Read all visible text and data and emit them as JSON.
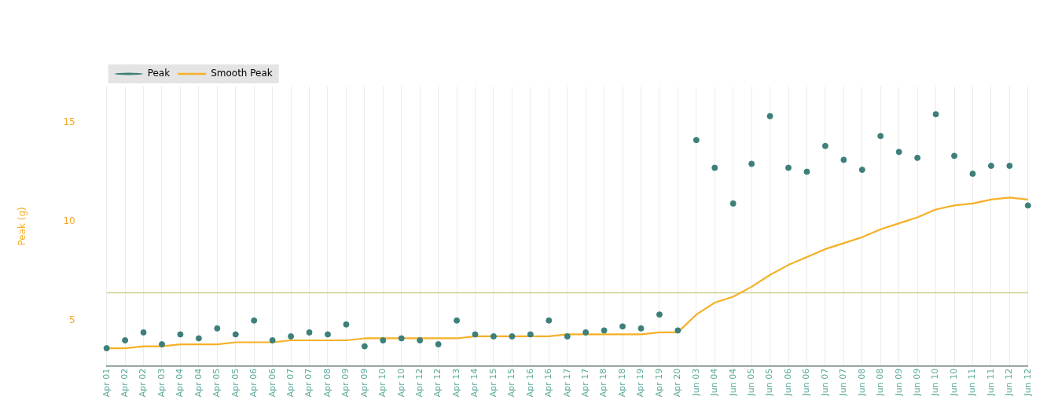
{
  "chart_data": {
    "type": "line",
    "ylabel": "Peak (g)",
    "categories": [
      "Apr 01",
      "Apr 02",
      "Apr 02",
      "Apr 03",
      "Apr 04",
      "Apr 04",
      "Apr 05",
      "Apr 05",
      "Apr 06",
      "Apr 06",
      "Apr 07",
      "Apr 07",
      "Apr 08",
      "Apr 09",
      "Apr 09",
      "Apr 10",
      "Apr 10",
      "Apr 12",
      "Apr 12",
      "Apr 13",
      "Apr 14",
      "Apr 15",
      "Apr 15",
      "Apr 16",
      "Apr 16",
      "Apr 17",
      "Apr 17",
      "Apr 18",
      "Apr 18",
      "Apr 19",
      "Apr 19",
      "Apr 20",
      "Jun 03",
      "Jun 04",
      "Jun 04",
      "Jun 05",
      "Jun 05",
      "Jun 06",
      "Jun 06",
      "Jun 07",
      "Jun 07",
      "Jun 08",
      "Jun 08",
      "Jun 09",
      "Jun 09",
      "Jun 10",
      "Jun 10",
      "Jun 11",
      "Jun 11",
      "Jun 12",
      "Jun 12"
    ],
    "series": [
      {
        "name": "Peak",
        "type": "scatter",
        "marker": "circle",
        "color": "#3d8079",
        "values": [
          3.6,
          4.0,
          4.4,
          3.8,
          4.3,
          4.1,
          4.6,
          4.3,
          5.0,
          4.0,
          4.2,
          4.4,
          4.3,
          4.8,
          3.7,
          4.0,
          4.1,
          4.0,
          3.8,
          5.0,
          4.3,
          4.2,
          4.2,
          4.3,
          5.0,
          4.2,
          4.4,
          4.5,
          4.7,
          4.6,
          5.3,
          4.5,
          14.1,
          12.7,
          10.9,
          12.9,
          15.3,
          12.7,
          12.5,
          13.8,
          13.1,
          12.6,
          14.3,
          13.5,
          13.2,
          15.4,
          13.3,
          12.4,
          12.8,
          12.8,
          10.8
        ]
      },
      {
        "name": "Smooth Peak",
        "type": "line",
        "marker": "none",
        "line_style": "solid",
        "color": "#f5b026",
        "values": [
          3.6,
          3.6,
          3.7,
          3.7,
          3.8,
          3.8,
          3.8,
          3.9,
          3.9,
          3.9,
          4.0,
          4.0,
          4.0,
          4.0,
          4.1,
          4.1,
          4.1,
          4.1,
          4.1,
          4.1,
          4.2,
          4.2,
          4.2,
          4.2,
          4.2,
          4.3,
          4.3,
          4.3,
          4.3,
          4.3,
          4.4,
          4.4,
          5.3,
          5.9,
          6.2,
          6.7,
          7.3,
          7.8,
          8.2,
          8.6,
          8.9,
          9.2,
          9.6,
          9.9,
          10.2,
          10.6,
          10.8,
          10.9,
          11.1,
          11.2,
          11.1
        ]
      }
    ],
    "ref_lines": [
      {
        "axis": "y",
        "value": 6.4,
        "color": "#cfd08a"
      }
    ],
    "ylim": [
      2.7,
      16.8
    ],
    "yticks": [
      5,
      10,
      15
    ],
    "grid": "x",
    "legend": "top left"
  }
}
